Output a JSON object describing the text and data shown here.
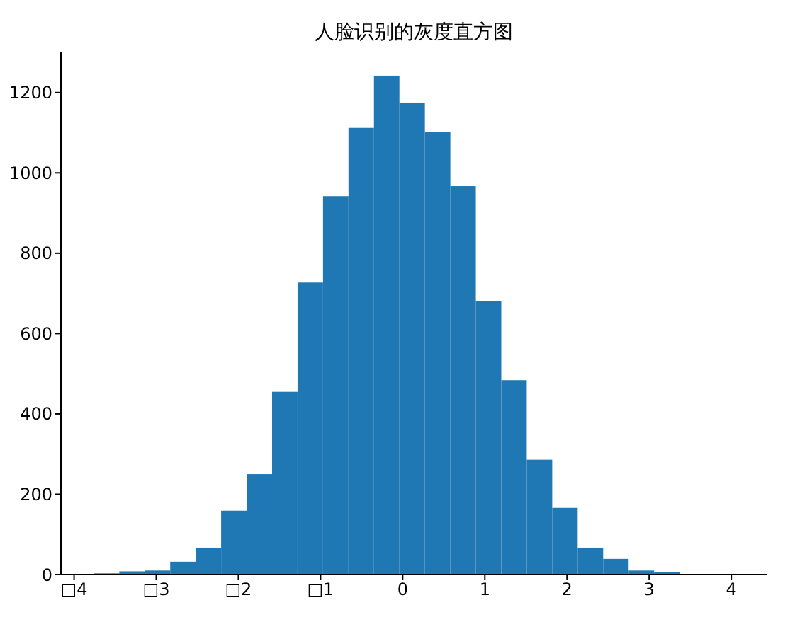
{
  "chart_data": {
    "type": "histogram",
    "title": "人脸识别的灰度直方图",
    "bins": [
      -3.76,
      -3.45,
      -3.14,
      -2.83,
      -2.52,
      -2.21,
      -1.9,
      -1.59,
      -1.28,
      -0.97,
      -0.66,
      -0.35,
      -0.04,
      0.27,
      0.58,
      0.89,
      1.2,
      1.51,
      1.82,
      2.13,
      2.44,
      2.75,
      3.06,
      3.37
    ],
    "values": [
      3,
      8,
      10,
      32,
      67,
      159,
      250,
      455,
      727,
      942,
      1112,
      1242,
      1175,
      1101,
      967,
      681,
      484,
      286,
      166,
      67,
      39,
      10,
      6
    ],
    "color": "#1f77b4",
    "xlim": [
      -4.16,
      4.43
    ],
    "xticks": [
      {
        "value": -4,
        "label": "□4"
      },
      {
        "value": -3,
        "label": "□3"
      },
      {
        "value": -2,
        "label": "□2"
      },
      {
        "value": -1,
        "label": "□1"
      },
      0,
      1,
      2,
      3,
      4
    ],
    "ylim": [
      0,
      1300
    ],
    "yticks": [
      0,
      200,
      400,
      600,
      800,
      1000,
      1200
    ],
    "grid": false,
    "legend": false
  }
}
